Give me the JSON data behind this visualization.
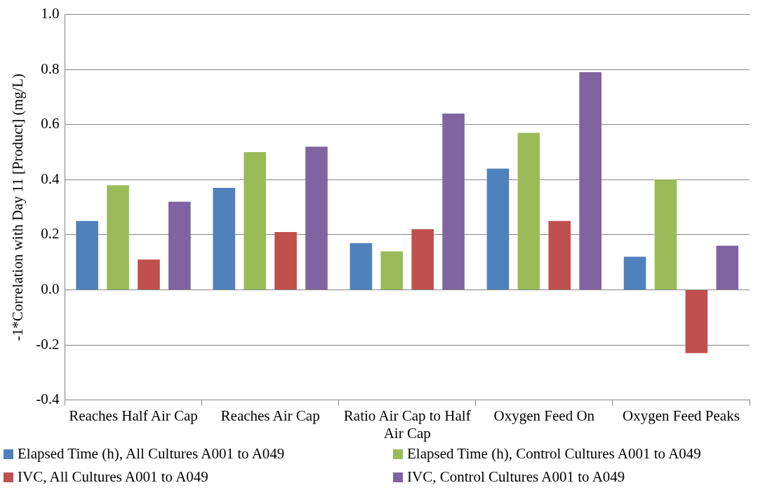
{
  "chart_data": {
    "type": "bar",
    "ylabel": "-1*Correlation with Day 11 [Product] (mg/L)",
    "categories": [
      "Reaches Half Air Cap",
      "Reaches Air Cap",
      "Ratio Air Cap to Half Air Cap",
      "Oxygen Feed On",
      "Oxygen Feed Peaks"
    ],
    "series": [
      {
        "name": "Elapsed Time (h), All Cultures A001 to A049",
        "color": "#4f81bd",
        "values": [
          0.25,
          0.37,
          0.17,
          0.44,
          0.12
        ]
      },
      {
        "name": "Elapsed Time (h), Control Cultures A001 to A049",
        "color": "#9bbb59",
        "values": [
          0.38,
          0.5,
          0.14,
          0.57,
          0.4
        ]
      },
      {
        "name": "IVC, All Cultures A001 to A049",
        "color": "#c0504d",
        "values": [
          0.11,
          0.21,
          0.22,
          0.25,
          -0.23
        ]
      },
      {
        "name": "IVC, Control Cultures A001 to A049",
        "color": "#8064a2",
        "values": [
          0.32,
          0.52,
          0.64,
          0.79,
          0.16
        ]
      }
    ],
    "ylim": [
      -0.4,
      1.0
    ],
    "yticks": [
      {
        "value": -0.4,
        "label": "-0.4"
      },
      {
        "value": -0.2,
        "label": "-0.2"
      },
      {
        "value": 0,
        "label": "0.0"
      },
      {
        "value": 0.2,
        "label": "0.2"
      },
      {
        "value": 0.4,
        "label": "0.4"
      },
      {
        "value": 0.6,
        "label": "0.6"
      },
      {
        "value": 0.8,
        "label": "0.8"
      },
      {
        "value": 1.0,
        "label": "1.0"
      }
    ],
    "grid": "y",
    "legend": "bottom"
  }
}
